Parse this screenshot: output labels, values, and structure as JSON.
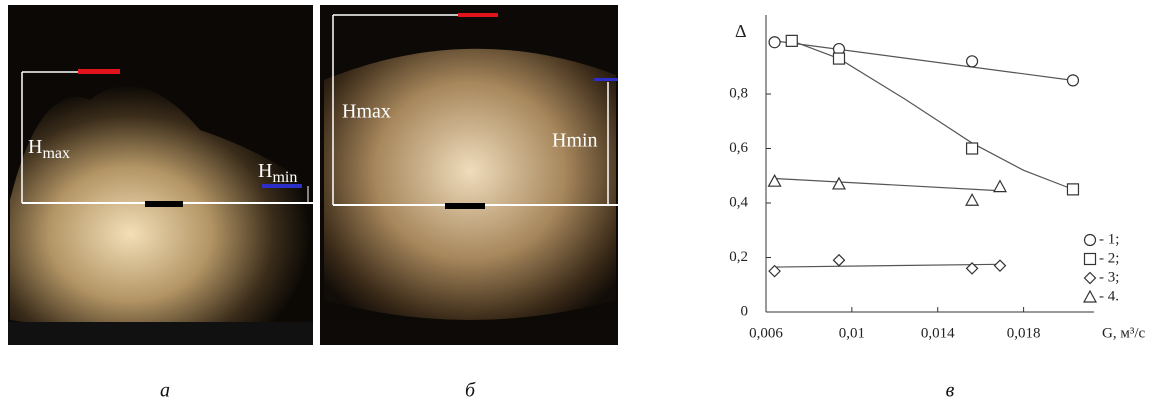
{
  "panels": [
    {
      "caption": "а",
      "labels": [
        {
          "main": "H",
          "sub": "max"
        },
        {
          "main": "H",
          "sub": "min"
        }
      ]
    },
    {
      "caption": "б",
      "labels": [
        "Hmax",
        "Hmin"
      ]
    }
  ],
  "chart_data": {
    "type": "scatter",
    "caption": "в",
    "y_label": "Δ",
    "x_label": "G, м³/с",
    "xlim": [
      0.006,
      0.021
    ],
    "ylim": [
      0,
      1.1
    ],
    "xticks": [
      {
        "value": 0.006,
        "label": "0,006"
      },
      {
        "value": 0.01,
        "label": "0,01"
      },
      {
        "value": 0.014,
        "label": "0,014"
      },
      {
        "value": 0.018,
        "label": "0,018"
      }
    ],
    "yticks": [
      0,
      {
        "value": 0.2,
        "label": "0,2"
      },
      {
        "value": 0.4,
        "label": "0,4"
      },
      {
        "value": 0.6,
        "label": "0,6"
      },
      {
        "value": 0.8,
        "label": "0,8"
      }
    ],
    "series": [
      {
        "name": "- 1;",
        "marker": "circle",
        "color": "#333",
        "x": [
          0.0064,
          0.0094,
          0.0156,
          0.0203
        ],
        "values": [
          0.99,
          0.965,
          0.92,
          0.85
        ],
        "fit": {
          "x": [
            0.0064,
            0.0203
          ],
          "values": [
            0.995,
            0.85
          ]
        }
      },
      {
        "name": "- 2;",
        "marker": "square",
        "color": "#333",
        "x": [
          0.0072,
          0.0094,
          0.0156,
          0.0203
        ],
        "values": [
          0.995,
          0.93,
          0.6,
          0.45
        ],
        "fit": {
          "x": [
            0.0072,
            0.0094,
            0.0125,
            0.0156,
            0.018,
            0.0203
          ],
          "values": [
            0.995,
            0.93,
            0.78,
            0.62,
            0.52,
            0.45
          ]
        }
      },
      {
        "name": "- 3;",
        "marker": "diamond",
        "color": "#333",
        "x": [
          0.0064,
          0.0094,
          0.0156,
          0.0169
        ],
        "values": [
          0.15,
          0.19,
          0.16,
          0.17
        ],
        "fit": {
          "x": [
            0.0064,
            0.0169
          ],
          "values": [
            0.165,
            0.175
          ]
        }
      },
      {
        "name": "- 4.",
        "marker": "triangle",
        "color": "#333",
        "x": [
          0.0064,
          0.0094,
          0.0156,
          0.0169
        ],
        "values": [
          0.48,
          0.47,
          0.41,
          0.46
        ],
        "fit": {
          "x": [
            0.0064,
            0.0169
          ],
          "values": [
            0.49,
            0.445
          ]
        }
      }
    ],
    "legend": "lower-right"
  }
}
